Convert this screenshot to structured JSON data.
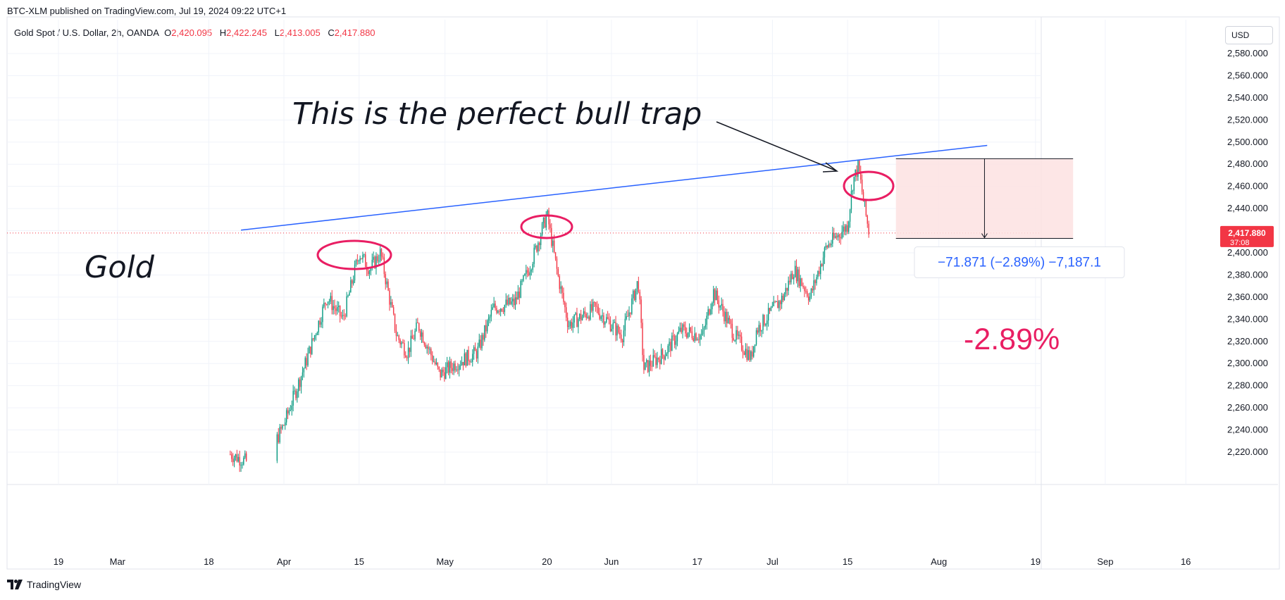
{
  "header": {
    "published": "BTC-XLM published on TradingView.com, Jul 19, 2024 09:22 UTC+1",
    "symbol": "Gold Spot / U.S. Dollar, 2h, OANDA",
    "o_label": "O",
    "o": "2,420.095",
    "h_label": "H",
    "h": "2,422.245",
    "l_label": "L",
    "l": "2,413.005",
    "c_label": "C",
    "c": "2,417.880"
  },
  "currency": "USD",
  "footer": {
    "brand": "TradingView"
  },
  "colors": {
    "up": "#089981",
    "down": "#f23645",
    "trendline": "#2962ff",
    "circle": "#e91e63",
    "box": "#fde2e2"
  },
  "chart_data": {
    "type": "candlestick",
    "ylim": [
      2200,
      2595
    ],
    "y_ticks": [
      "2,220.000",
      "2,240.000",
      "2,260.000",
      "2,280.000",
      "2,300.000",
      "2,320.000",
      "2,340.000",
      "2,360.000",
      "2,380.000",
      "2,400.000",
      "2,420.000",
      "2,440.000",
      "2,460.000",
      "2,480.000",
      "2,500.000",
      "2,520.000",
      "2,540.000",
      "2,560.000",
      "2,580.000"
    ],
    "x_ticks": [
      "19",
      "Mar",
      "18",
      "Apr",
      "15",
      "May",
      "20",
      "Jun",
      "17",
      "Jul",
      "15",
      "Aug",
      "19",
      "Sep",
      "16"
    ],
    "x_tick_dates": [
      "2024-02-19",
      "2024-03-01",
      "2024-03-18",
      "2024-04-01",
      "2024-04-15",
      "2024-05-01",
      "2024-05-20",
      "2024-06-01",
      "2024-06-17",
      "2024-07-01",
      "2024-07-15",
      "2024-08-01",
      "2024-08-19",
      "2024-09-01",
      "2024-09-16"
    ],
    "price_path": [
      [
        "2024-03-22",
        2218
      ],
      [
        "2024-03-28",
        2205
      ],
      [
        "2024-04-01",
        2245
      ],
      [
        "2024-04-05",
        2300
      ],
      [
        "2024-04-09",
        2360
      ],
      [
        "2024-04-12",
        2340
      ],
      [
        "2024-04-15",
        2400
      ],
      [
        "2024-04-17",
        2385
      ],
      [
        "2024-04-19",
        2400
      ],
      [
        "2024-04-22",
        2325
      ],
      [
        "2024-04-24",
        2310
      ],
      [
        "2024-04-26",
        2335
      ],
      [
        "2024-04-30",
        2290
      ],
      [
        "2024-05-03",
        2300
      ],
      [
        "2024-05-07",
        2310
      ],
      [
        "2024-05-10",
        2350
      ],
      [
        "2024-05-14",
        2355
      ],
      [
        "2024-05-17",
        2390
      ],
      [
        "2024-05-20",
        2435
      ],
      [
        "2024-05-22",
        2380
      ],
      [
        "2024-05-24",
        2335
      ],
      [
        "2024-05-29",
        2350
      ],
      [
        "2024-06-03",
        2325
      ],
      [
        "2024-06-06",
        2375
      ],
      [
        "2024-06-07",
        2295
      ],
      [
        "2024-06-11",
        2310
      ],
      [
        "2024-06-14",
        2330
      ],
      [
        "2024-06-18",
        2325
      ],
      [
        "2024-06-20",
        2365
      ],
      [
        "2024-06-24",
        2325
      ],
      [
        "2024-06-27",
        2305
      ],
      [
        "2024-06-28",
        2330
      ],
      [
        "2024-07-03",
        2360
      ],
      [
        "2024-07-05",
        2385
      ],
      [
        "2024-07-08",
        2360
      ],
      [
        "2024-07-11",
        2405
      ],
      [
        "2024-07-12",
        2410
      ],
      [
        "2024-07-15",
        2425
      ],
      [
        "2024-07-16",
        2465
      ],
      [
        "2024-07-17",
        2478
      ],
      [
        "2024-07-18",
        2445
      ],
      [
        "2024-07-19",
        2418
      ]
    ],
    "last_price": "2,417.880",
    "countdown": "37:08",
    "trendline": {
      "from": [
        "2024-03-24",
        2420.5
      ],
      "to": [
        "2024-08-10",
        2497
      ]
    },
    "measure": {
      "from_date": "2024-07-24",
      "to_date": "2024-08-26",
      "top": 2485,
      "bottom": 2413,
      "label": "−71.871 (−2.89%) −7,187.1"
    },
    "annotations": {
      "title_text": "This is the perfect bull trap",
      "gold_label": "Gold",
      "pct_label": "-2.89%"
    }
  }
}
